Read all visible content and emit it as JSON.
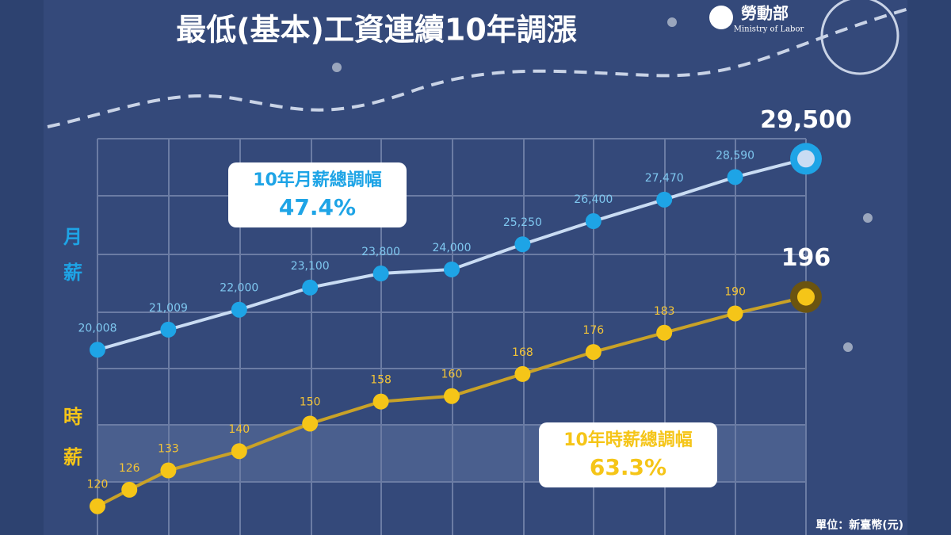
{
  "header": {
    "title": "最低(基本)工資連續10年調漲",
    "logo": "勞動部",
    "logo_en": "Ministry of Labor"
  },
  "unit": "單位：新臺幣(元)",
  "chart_data": [
    {
      "type": "line",
      "label": "月薪",
      "color": "#1ea4e6",
      "line_color": "#c9dcf3",
      "label_color": "#7fc8f0",
      "summary": {
        "label": "10年月薪總調幅",
        "value": "47.4%"
      },
      "x": [
        0,
        1,
        2,
        3,
        4,
        5,
        6,
        7,
        8,
        9,
        10
      ],
      "values": [
        20008,
        21009,
        22000,
        23100,
        23800,
        24000,
        25250,
        26400,
        27470,
        28590,
        29500
      ],
      "value_labels": [
        "20,008",
        "21,009",
        "22,000",
        "23,100",
        "23,800",
        "24,000",
        "25,250",
        "26,400",
        "27,470",
        "28,590",
        "29,500"
      ],
      "xlim": [
        0,
        10
      ],
      "ylim": [
        11000,
        30300
      ]
    },
    {
      "type": "line",
      "label": "時薪",
      "color": "#f5c518",
      "line_color": "#c9a227",
      "label_color": "#f3c437",
      "summary": {
        "label": "10年時薪總調幅",
        "value": "63.3%"
      },
      "x": [
        0,
        0.45,
        1,
        2,
        3,
        4,
        5,
        6,
        7,
        8,
        9,
        10
      ],
      "values": [
        120,
        126,
        133,
        140,
        150,
        158,
        160,
        168,
        176,
        183,
        190,
        196
      ],
      "xlim": [
        0,
        10
      ],
      "ylim": [
        111,
        252
      ]
    }
  ]
}
